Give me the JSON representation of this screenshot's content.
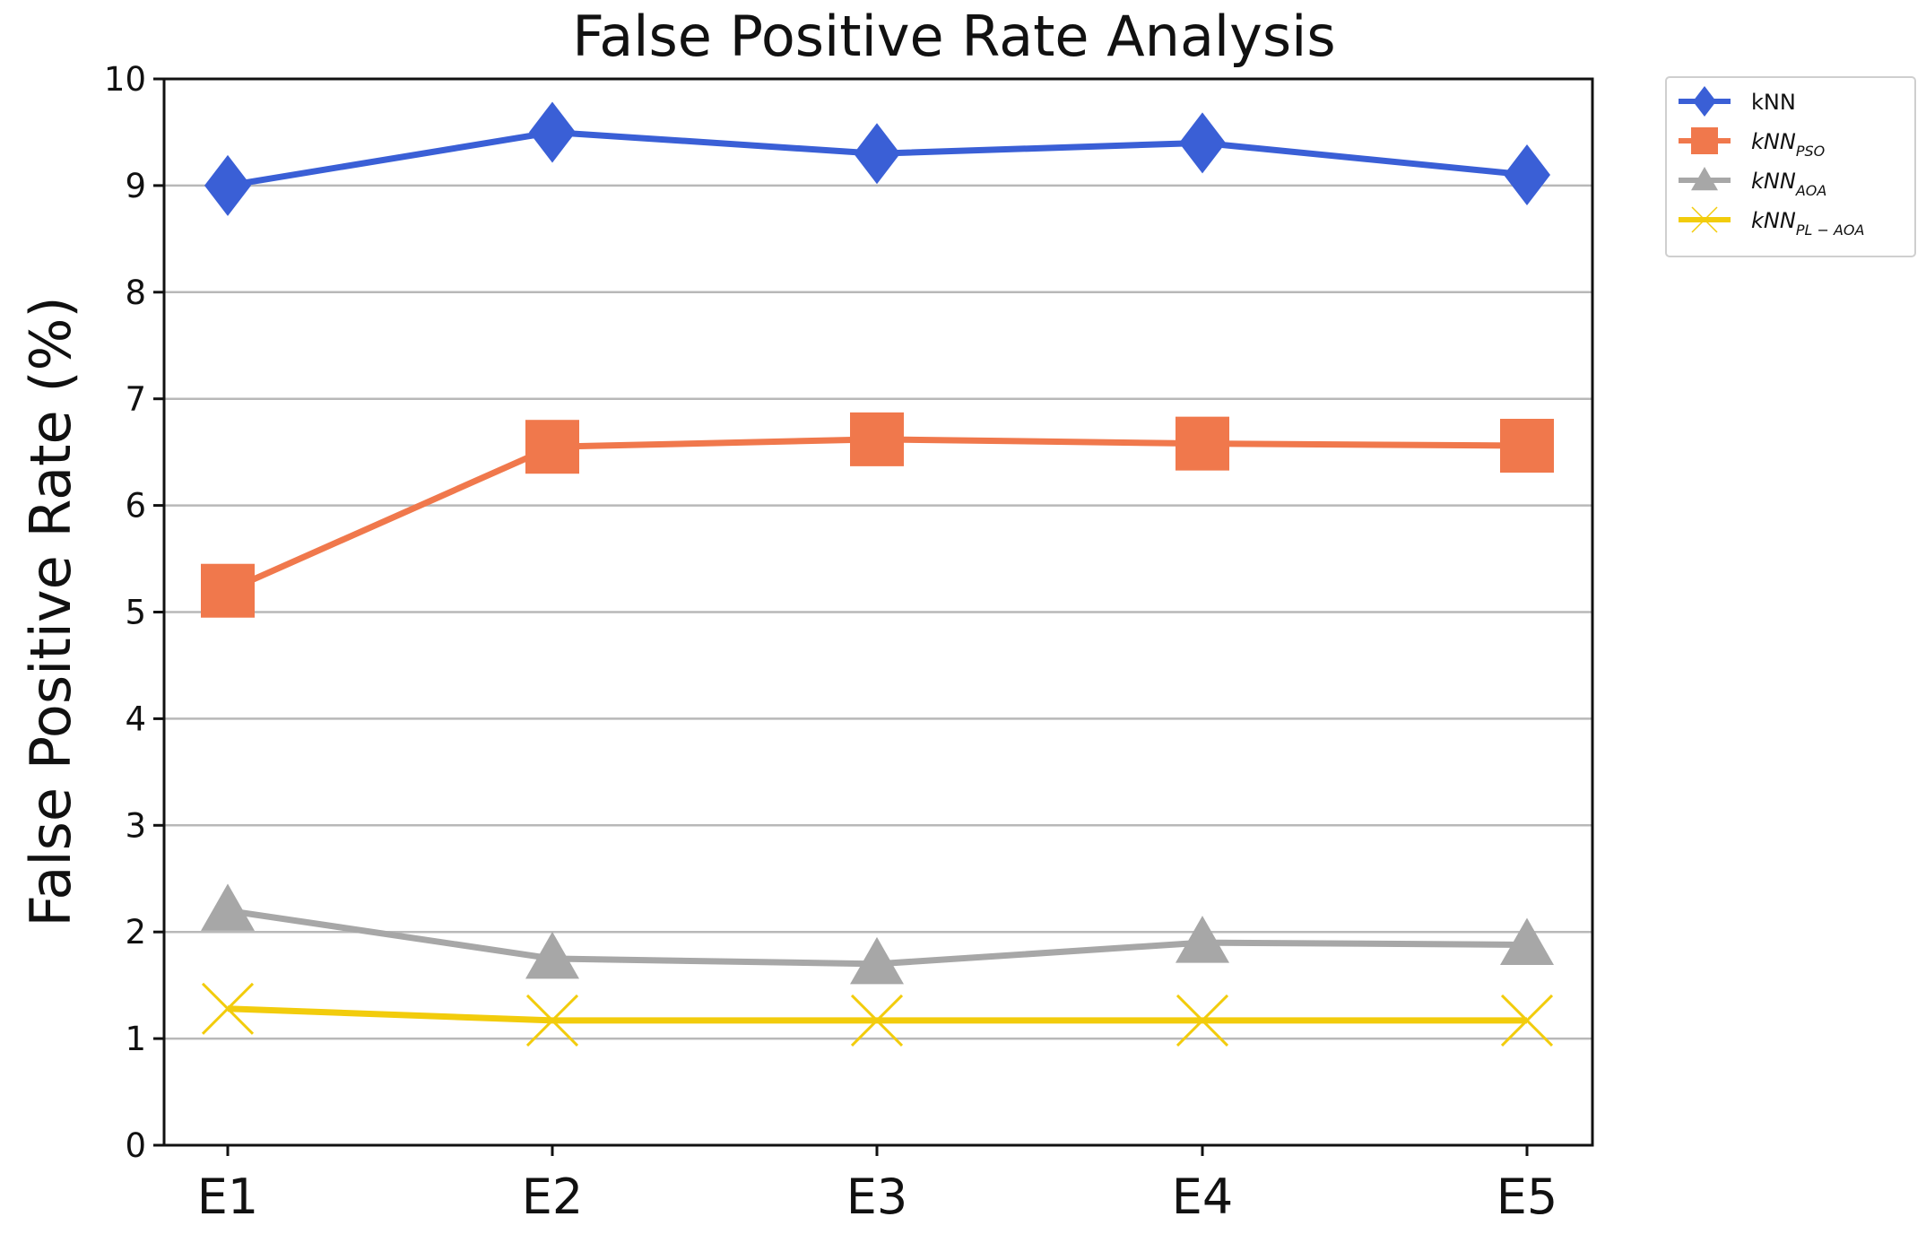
{
  "chart_data": {
    "type": "line",
    "title": "False Positive Rate Analysis",
    "xlabel": "",
    "ylabel": "False Positive Rate (%)",
    "categories": [
      "E1",
      "E2",
      "E3",
      "E4",
      "E5"
    ],
    "ylim": [
      0,
      10
    ],
    "yticks": [
      0,
      1,
      2,
      3,
      4,
      5,
      6,
      7,
      8,
      9,
      10
    ],
    "grid": "horizontal",
    "legend_position": "outside-top-right",
    "series": [
      {
        "name": "kNN",
        "base": "kNN",
        "sub": "",
        "color": "#3a5fd6",
        "marker": "diamond",
        "values": [
          9.0,
          9.5,
          9.3,
          9.4,
          9.1
        ]
      },
      {
        "name": "kNN_PSO",
        "base": "kNN",
        "sub": "PSO",
        "color": "#f0784c",
        "marker": "square",
        "values": [
          5.2,
          6.55,
          6.62,
          6.58,
          6.56
        ]
      },
      {
        "name": "kNN_AOA",
        "base": "kNN",
        "sub": "AOA",
        "color": "#a7a7a7",
        "marker": "triangle",
        "values": [
          2.2,
          1.75,
          1.7,
          1.9,
          1.88
        ]
      },
      {
        "name": "kNN_PL-AOA",
        "base": "kNN",
        "sub": "PL − AOA",
        "color": "#f2cc0c",
        "marker": "x",
        "values": [
          1.28,
          1.17,
          1.17,
          1.17,
          1.17
        ]
      }
    ]
  }
}
